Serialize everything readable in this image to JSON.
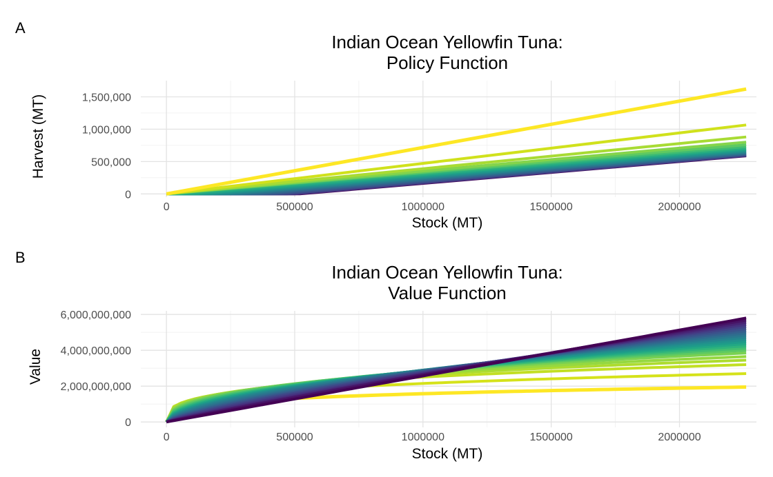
{
  "chart_data": [
    {
      "panel": "A",
      "type": "line",
      "title_lines": [
        "Indian Ocean Yellowfin Tuna:",
        "Policy Function"
      ],
      "xlabel": "Stock (MT)",
      "ylabel": "Harvest (MT)",
      "xlim": [
        -100000,
        2300000
      ],
      "ylim": [
        -50000,
        1750000
      ],
      "x_ticks": [
        0,
        500000,
        1000000,
        1500000,
        2000000
      ],
      "x_tick_labels": [
        "0",
        "500000",
        "1000000",
        "1500000",
        "2000000"
      ],
      "y_ticks": [
        0,
        500000,
        1000000,
        1500000
      ],
      "y_tick_labels": [
        "0",
        "500,000",
        "1,000,000",
        "1,500,000"
      ],
      "grid": true,
      "legend": "none",
      "color_scale": "viridis",
      "series": [
        {
          "x": [
            0,
            2260000
          ],
          "y": [
            0,
            1620000
          ],
          "color": "#fde725"
        },
        {
          "x": [
            0,
            2260000
          ],
          "y": [
            0,
            1065000
          ],
          "color": "#d0e11c"
        },
        {
          "x": [
            0,
            2260000
          ],
          "y": [
            0,
            880000
          ],
          "color": "#a8db34"
        },
        {
          "x": [
            0,
            2260000
          ],
          "y": [
            0,
            800000
          ],
          "color": "#84d44b"
        },
        {
          "x": [
            0,
            2260000
          ],
          "y": [
            0,
            760000
          ],
          "color": "#5ec962"
        },
        {
          "x": [
            0,
            2260000
          ],
          "y": [
            0,
            730000
          ],
          "color": "#3fbc73"
        },
        {
          "x": [
            0,
            60000,
            2260000
          ],
          "y": [
            0,
            0,
            705000
          ],
          "color": "#28ae80"
        },
        {
          "x": [
            0,
            120000,
            2260000
          ],
          "y": [
            0,
            0,
            685000
          ],
          "color": "#1fa088"
        },
        {
          "x": [
            0,
            180000,
            2260000
          ],
          "y": [
            0,
            0,
            665000
          ],
          "color": "#21918c"
        },
        {
          "x": [
            0,
            240000,
            2260000
          ],
          "y": [
            0,
            0,
            648000
          ],
          "color": "#26828e"
        },
        {
          "x": [
            0,
            300000,
            2260000
          ],
          "y": [
            0,
            0,
            633000
          ],
          "color": "#2c728e"
        },
        {
          "x": [
            0,
            360000,
            2260000
          ],
          "y": [
            0,
            0,
            620000
          ],
          "color": "#33638d"
        },
        {
          "x": [
            0,
            420000,
            2260000
          ],
          "y": [
            0,
            0,
            608000
          ],
          "color": "#3b528b"
        },
        {
          "x": [
            0,
            470000,
            2260000
          ],
          "y": [
            0,
            0,
            598000
          ],
          "color": "#424086"
        },
        {
          "x": [
            0,
            500000,
            2260000
          ],
          "y": [
            0,
            0,
            592000
          ],
          "color": "#472d7b"
        },
        {
          "x": [
            0,
            520000,
            2260000
          ],
          "y": [
            0,
            0,
            588000
          ],
          "color": "#440154"
        }
      ]
    },
    {
      "panel": "B",
      "type": "line",
      "title_lines": [
        "Indian Ocean Yellowfin Tuna:",
        "Value Function"
      ],
      "xlabel": "Stock (MT)",
      "ylabel": "Value",
      "xlim": [
        -100000,
        2300000
      ],
      "ylim": [
        -300000000,
        6200000000
      ],
      "x_ticks": [
        0,
        500000,
        1000000,
        1500000,
        2000000
      ],
      "x_tick_labels": [
        "0",
        "500000",
        "1000000",
        "1500000",
        "2000000"
      ],
      "y_ticks": [
        0,
        2000000000,
        4000000000,
        6000000000
      ],
      "y_tick_labels": [
        "0",
        "2,000,000,000",
        "4,000,000,000",
        "6,000,000,000"
      ],
      "grid": true,
      "legend": "none",
      "color_scale": "viridis",
      "curve_exponents": [
        1.0,
        0.94,
        0.9,
        0.85,
        0.8,
        0.76,
        0.72,
        0.68,
        0.64,
        0.6,
        0.57,
        0.54,
        0.51,
        0.48,
        0.45,
        0.42,
        0.39,
        0.36,
        0.33,
        0.3,
        0.28,
        0.26
      ],
      "series": [
        {
          "end_value": 5800000000,
          "color": "#440154"
        },
        {
          "end_value": 5680000000,
          "color": "#471365"
        },
        {
          "end_value": 5560000000,
          "color": "#482475"
        },
        {
          "end_value": 5440000000,
          "color": "#463480"
        },
        {
          "end_value": 5320000000,
          "color": "#414487"
        },
        {
          "end_value": 5200000000,
          "color": "#3b528b"
        },
        {
          "end_value": 5080000000,
          "color": "#355f8d"
        },
        {
          "end_value": 4960000000,
          "color": "#2f6c8e"
        },
        {
          "end_value": 4840000000,
          "color": "#2a788e"
        },
        {
          "end_value": 4720000000,
          "color": "#25848e"
        },
        {
          "end_value": 4600000000,
          "color": "#21918c"
        },
        {
          "end_value": 4480000000,
          "color": "#1e9c89"
        },
        {
          "end_value": 4360000000,
          "color": "#22a884"
        },
        {
          "end_value": 4240000000,
          "color": "#2fb47c"
        },
        {
          "end_value": 4120000000,
          "color": "#44bf70"
        },
        {
          "end_value": 4000000000,
          "color": "#5ec962"
        },
        {
          "end_value": 3850000000,
          "color": "#7ad151"
        },
        {
          "end_value": 3650000000,
          "color": "#95d840"
        },
        {
          "end_value": 3450000000,
          "color": "#addc30"
        },
        {
          "end_value": 3200000000,
          "color": "#c2df23"
        },
        {
          "end_value": 2700000000,
          "color": "#d5e21a"
        },
        {
          "end_value": 1950000000,
          "color": "#fde725"
        }
      ]
    }
  ]
}
